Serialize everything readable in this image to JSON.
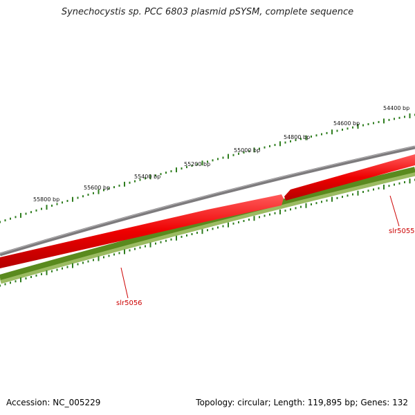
{
  "title": "Synechocystis sp. PCC 6803 plasmid pSYSM, complete sequence",
  "accession_text": "Accession: NC_005229",
  "topology_text": "Topology: circular; Length: 119,895 bp; Genes: 132",
  "colors": {
    "backbone": "#7d7b7d",
    "forward_gene": "#ee0000",
    "gc_track": "#5a8a1e",
    "gc_track_light": "#9bbb62",
    "ticks": "#2e7d1e",
    "gene_label": "#cc0000"
  },
  "scale_labels": [
    "55800 bp",
    "55600 bp",
    "55400 bp",
    "55200 bp",
    "55000 bp",
    "54800 bp",
    "54600 bp",
    "54400 bp"
  ],
  "genes": [
    {
      "name": "slr5056",
      "strand": "forward"
    },
    {
      "name": "slr5055",
      "strand": "forward"
    }
  ]
}
